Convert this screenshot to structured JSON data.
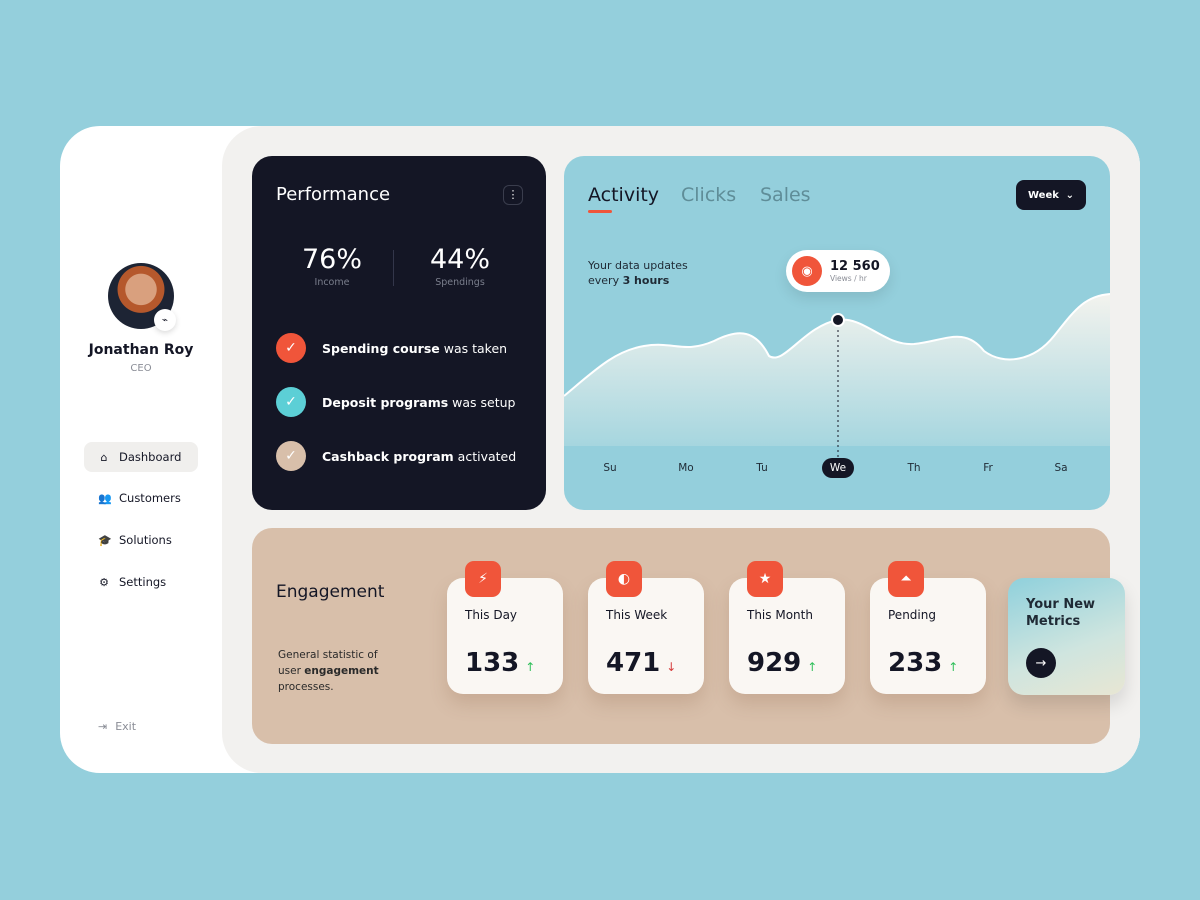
{
  "profile": {
    "name": "Jonathan Roy",
    "role": "CEO",
    "status_icon": "activity-icon"
  },
  "nav": [
    {
      "label": "Dashboard",
      "icon": "home-icon",
      "active": true
    },
    {
      "label": "Customers",
      "icon": "users-icon",
      "active": false
    },
    {
      "label": "Solutions",
      "icon": "graduation-cap-icon",
      "active": false
    },
    {
      "label": "Settings",
      "icon": "gear-icon",
      "active": false
    }
  ],
  "exit_label": "Exit",
  "performance": {
    "title": "Performance",
    "income": {
      "value": "76%",
      "label": "Income"
    },
    "spendings": {
      "value": "44%",
      "label": "Spendings"
    },
    "tasks": [
      {
        "bold": "Spending course",
        "rest": " was taken",
        "color": "#f0553a"
      },
      {
        "bold": "Deposit programs",
        "rest": " was setup",
        "color": "#5ccfd6"
      },
      {
        "bold": "Cashback program",
        "rest": " activated",
        "color": "#d8bfaa"
      }
    ]
  },
  "activity": {
    "tabs": [
      "Activity",
      "Clicks",
      "Sales"
    ],
    "active_tab": "Activity",
    "period": "Week",
    "update_text": "Your data updates",
    "update_every": "every ",
    "update_hours": "3 hours",
    "tooltip": {
      "value": "12 560",
      "unit": "Views / hr"
    },
    "days": [
      "Su",
      "Mo",
      "Tu",
      "We",
      "Th",
      "Fr",
      "Sa"
    ],
    "selected_day": "We"
  },
  "engagement": {
    "title": "Engagement",
    "desc_1": "General statistic of user ",
    "desc_bold": "engagement",
    "desc_2": " processes.",
    "cards": [
      {
        "label": "This Day",
        "value": "133",
        "trend": "up",
        "icon": "bolt-icon"
      },
      {
        "label": "This Week",
        "value": "471",
        "trend": "down",
        "icon": "half-circle-icon"
      },
      {
        "label": "This Month",
        "value": "929",
        "trend": "up",
        "icon": "star-icon"
      },
      {
        "label": "Pending",
        "value": "233",
        "trend": "up",
        "icon": "double-arrow-up-icon"
      }
    ],
    "metrics_title": "Your New Metrics"
  },
  "colors": {
    "accent": "#f0553a",
    "dark": "#141625",
    "up": "#2fbf5a",
    "down": "#d63b3b"
  }
}
